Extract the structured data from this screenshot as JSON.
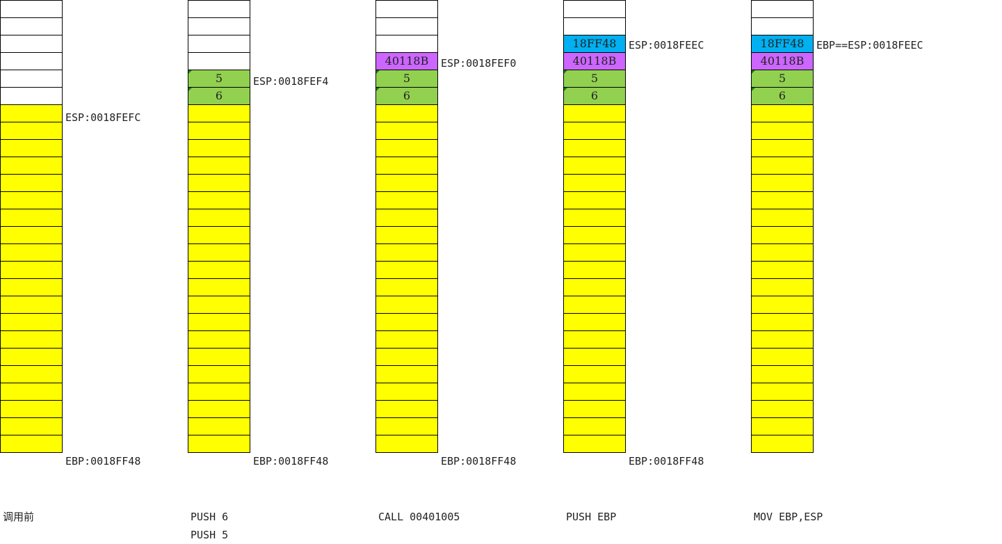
{
  "colors": {
    "empty": "#ffffff",
    "stack": "#ffff00",
    "param": "#92d050",
    "ret": "#cc66ff",
    "ebp": "#00b0f0"
  },
  "columns": [
    {
      "cells": [
        {
          "t": "",
          "c": "empty"
        },
        {
          "t": "",
          "c": "empty"
        },
        {
          "t": "",
          "c": "empty"
        },
        {
          "t": "",
          "c": "empty"
        },
        {
          "t": "",
          "c": "empty"
        },
        {
          "t": "",
          "c": "empty"
        },
        {
          "t": "",
          "c": "stack"
        },
        {
          "t": "",
          "c": "stack"
        },
        {
          "t": "",
          "c": "stack"
        },
        {
          "t": "",
          "c": "stack"
        },
        {
          "t": "",
          "c": "stack"
        },
        {
          "t": "",
          "c": "stack"
        },
        {
          "t": "",
          "c": "stack"
        },
        {
          "t": "",
          "c": "stack"
        },
        {
          "t": "",
          "c": "stack"
        },
        {
          "t": "",
          "c": "stack"
        },
        {
          "t": "",
          "c": "stack"
        },
        {
          "t": "",
          "c": "stack"
        },
        {
          "t": "",
          "c": "stack"
        },
        {
          "t": "",
          "c": "stack"
        },
        {
          "t": "",
          "c": "stack"
        },
        {
          "t": "",
          "c": "stack"
        },
        {
          "t": "",
          "c": "stack"
        },
        {
          "t": "",
          "c": "stack"
        },
        {
          "t": "",
          "c": "stack"
        },
        {
          "t": "",
          "c": "stack"
        }
      ],
      "labels": [
        {
          "row": 6,
          "text": "ESP:0018FEFC"
        },
        {
          "row": 25,
          "text": "EBP:0018FF48"
        }
      ],
      "caption": "调用前"
    },
    {
      "cells": [
        {
          "t": "",
          "c": "empty"
        },
        {
          "t": "",
          "c": "empty"
        },
        {
          "t": "",
          "c": "empty"
        },
        {
          "t": "",
          "c": "empty"
        },
        {
          "t": "5",
          "c": "param"
        },
        {
          "t": "6",
          "c": "param"
        },
        {
          "t": "",
          "c": "stack"
        },
        {
          "t": "",
          "c": "stack"
        },
        {
          "t": "",
          "c": "stack"
        },
        {
          "t": "",
          "c": "stack"
        },
        {
          "t": "",
          "c": "stack"
        },
        {
          "t": "",
          "c": "stack"
        },
        {
          "t": "",
          "c": "stack"
        },
        {
          "t": "",
          "c": "stack"
        },
        {
          "t": "",
          "c": "stack"
        },
        {
          "t": "",
          "c": "stack"
        },
        {
          "t": "",
          "c": "stack"
        },
        {
          "t": "",
          "c": "stack"
        },
        {
          "t": "",
          "c": "stack"
        },
        {
          "t": "",
          "c": "stack"
        },
        {
          "t": "",
          "c": "stack"
        },
        {
          "t": "",
          "c": "stack"
        },
        {
          "t": "",
          "c": "stack"
        },
        {
          "t": "",
          "c": "stack"
        },
        {
          "t": "",
          "c": "stack"
        },
        {
          "t": "",
          "c": "stack"
        }
      ],
      "labels": [
        {
          "row": 4,
          "text": "ESP:0018FEF4"
        },
        {
          "row": 25,
          "text": "EBP:0018FF48"
        }
      ],
      "caption": "PUSH 6\nPUSH 5"
    },
    {
      "cells": [
        {
          "t": "",
          "c": "empty"
        },
        {
          "t": "",
          "c": "empty"
        },
        {
          "t": "",
          "c": "empty"
        },
        {
          "t": "40118B",
          "c": "ret"
        },
        {
          "t": "5",
          "c": "param"
        },
        {
          "t": "6",
          "c": "param"
        },
        {
          "t": "",
          "c": "stack"
        },
        {
          "t": "",
          "c": "stack"
        },
        {
          "t": "",
          "c": "stack"
        },
        {
          "t": "",
          "c": "stack"
        },
        {
          "t": "",
          "c": "stack"
        },
        {
          "t": "",
          "c": "stack"
        },
        {
          "t": "",
          "c": "stack"
        },
        {
          "t": "",
          "c": "stack"
        },
        {
          "t": "",
          "c": "stack"
        },
        {
          "t": "",
          "c": "stack"
        },
        {
          "t": "",
          "c": "stack"
        },
        {
          "t": "",
          "c": "stack"
        },
        {
          "t": "",
          "c": "stack"
        },
        {
          "t": "",
          "c": "stack"
        },
        {
          "t": "",
          "c": "stack"
        },
        {
          "t": "",
          "c": "stack"
        },
        {
          "t": "",
          "c": "stack"
        },
        {
          "t": "",
          "c": "stack"
        },
        {
          "t": "",
          "c": "stack"
        },
        {
          "t": "",
          "c": "stack"
        }
      ],
      "labels": [
        {
          "row": 3,
          "text": "ESP:0018FEF0"
        },
        {
          "row": 25,
          "text": "EBP:0018FF48"
        }
      ],
      "caption": "CALL 00401005"
    },
    {
      "cells": [
        {
          "t": "",
          "c": "empty"
        },
        {
          "t": "",
          "c": "empty"
        },
        {
          "t": "18FF48",
          "c": "ebp"
        },
        {
          "t": "40118B",
          "c": "ret"
        },
        {
          "t": "5",
          "c": "param"
        },
        {
          "t": "6",
          "c": "param"
        },
        {
          "t": "",
          "c": "stack"
        },
        {
          "t": "",
          "c": "stack"
        },
        {
          "t": "",
          "c": "stack"
        },
        {
          "t": "",
          "c": "stack"
        },
        {
          "t": "",
          "c": "stack"
        },
        {
          "t": "",
          "c": "stack"
        },
        {
          "t": "",
          "c": "stack"
        },
        {
          "t": "",
          "c": "stack"
        },
        {
          "t": "",
          "c": "stack"
        },
        {
          "t": "",
          "c": "stack"
        },
        {
          "t": "",
          "c": "stack"
        },
        {
          "t": "",
          "c": "stack"
        },
        {
          "t": "",
          "c": "stack"
        },
        {
          "t": "",
          "c": "stack"
        },
        {
          "t": "",
          "c": "stack"
        },
        {
          "t": "",
          "c": "stack"
        },
        {
          "t": "",
          "c": "stack"
        },
        {
          "t": "",
          "c": "stack"
        },
        {
          "t": "",
          "c": "stack"
        },
        {
          "t": "",
          "c": "stack"
        }
      ],
      "labels": [
        {
          "row": 2,
          "text": "ESP:0018FEEC"
        },
        {
          "row": 25,
          "text": "EBP:0018FF48"
        }
      ],
      "caption": "PUSH EBP"
    },
    {
      "cells": [
        {
          "t": "",
          "c": "empty"
        },
        {
          "t": "",
          "c": "empty"
        },
        {
          "t": "18FF48",
          "c": "ebp"
        },
        {
          "t": "40118B",
          "c": "ret"
        },
        {
          "t": "5",
          "c": "param"
        },
        {
          "t": "6",
          "c": "param"
        },
        {
          "t": "",
          "c": "stack"
        },
        {
          "t": "",
          "c": "stack"
        },
        {
          "t": "",
          "c": "stack"
        },
        {
          "t": "",
          "c": "stack"
        },
        {
          "t": "",
          "c": "stack"
        },
        {
          "t": "",
          "c": "stack"
        },
        {
          "t": "",
          "c": "stack"
        },
        {
          "t": "",
          "c": "stack"
        },
        {
          "t": "",
          "c": "stack"
        },
        {
          "t": "",
          "c": "stack"
        },
        {
          "t": "",
          "c": "stack"
        },
        {
          "t": "",
          "c": "stack"
        },
        {
          "t": "",
          "c": "stack"
        },
        {
          "t": "",
          "c": "stack"
        },
        {
          "t": "",
          "c": "stack"
        },
        {
          "t": "",
          "c": "stack"
        },
        {
          "t": "",
          "c": "stack"
        },
        {
          "t": "",
          "c": "stack"
        },
        {
          "t": "",
          "c": "stack"
        },
        {
          "t": "",
          "c": "stack"
        }
      ],
      "labels": [
        {
          "row": 2,
          "text": "EBP==ESP:0018FEEC"
        }
      ],
      "caption": "MOV EBP,ESP"
    }
  ]
}
